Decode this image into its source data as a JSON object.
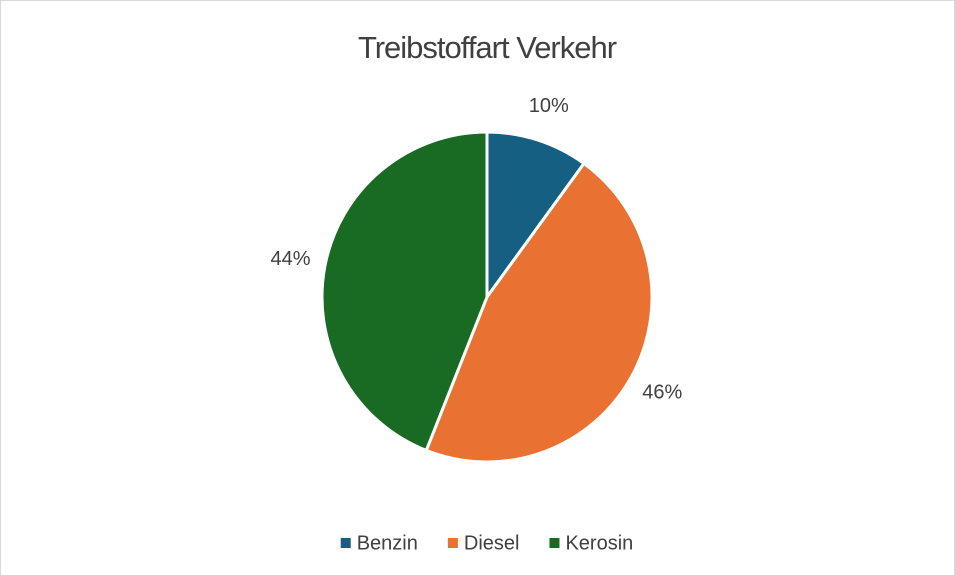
{
  "chart_data": {
    "type": "pie",
    "title": "Treibstoffart Verkehr",
    "categories": [
      "Benzin",
      "Diesel",
      "Kerosin"
    ],
    "values": [
      10,
      46,
      44
    ],
    "value_labels": [
      "10%",
      "46%",
      "44%"
    ],
    "colors": [
      "#156082",
      "#e97132",
      "#196b24"
    ],
    "legend": "bottom"
  }
}
